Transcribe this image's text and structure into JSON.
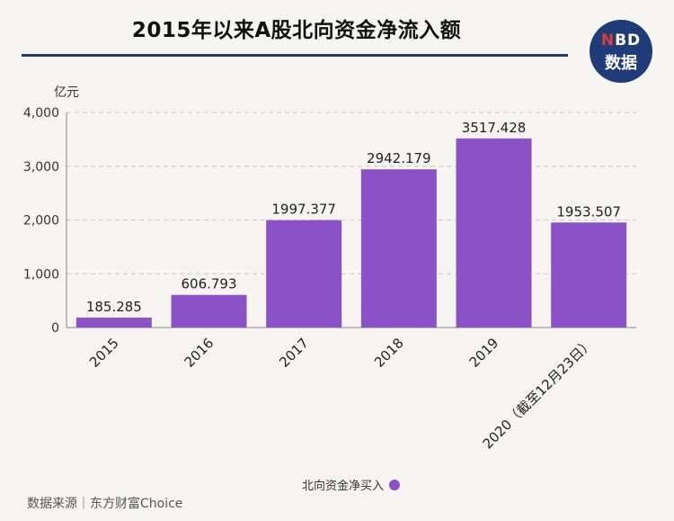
{
  "header": {
    "title": "2015年以来A股北向资金净流入额",
    "logo_line1_accent": "N",
    "logo_line1_rest": "BD",
    "logo_line2": "数据"
  },
  "footer": {
    "source": "数据来源｜东方财富Choice"
  },
  "colors": {
    "bar": "#8a52c6",
    "title_rule": "#1f3c78",
    "logo_bg": "#1f3c78",
    "logo_accent": "#e23b3b"
  },
  "chart_data": {
    "type": "bar",
    "title": "2015年以来A股北向资金净流入额",
    "ylabel": "亿元",
    "xlabel": "",
    "categories": [
      "2015",
      "2016",
      "2017",
      "2018",
      "2019",
      "2020（截至12月23日）"
    ],
    "series": [
      {
        "name": "北向资金净买入",
        "values": [
          185.285,
          606.793,
          1997.377,
          2942.179,
          3517.428,
          1953.507
        ]
      }
    ],
    "data_labels": [
      "185.285",
      "606.793",
      "1997.377",
      "2942.179",
      "3517.428",
      "1953.507"
    ],
    "ylim": [
      0,
      4000
    ],
    "yticks": [
      0,
      1000,
      2000,
      3000,
      4000
    ],
    "ytick_labels": [
      "0",
      "1,000",
      "2,000",
      "3,000",
      "4,000"
    ],
    "grid": true,
    "legend_position": "bottom-center"
  }
}
